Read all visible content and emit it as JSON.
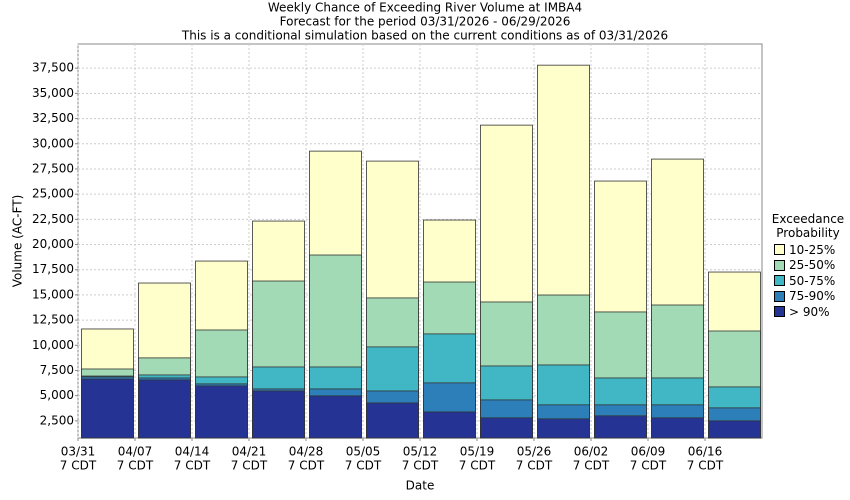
{
  "chart_data": {
    "type": "bar",
    "title": "Weekly Chance of Exceeding River Volume at IMBA4",
    "subtitle": "Forecast for the period 03/31/2026 - 06/29/2026",
    "note": "This is a conditional simulation based on the current conditions as of 03/31/2026",
    "x_label": "Date",
    "y_label": "Volume (AC-FT)",
    "categories": [
      "03/31",
      "04/07",
      "04/14",
      "04/21",
      "04/28",
      "05/05",
      "05/12",
      "05/19",
      "05/26",
      "06/02",
      "06/09",
      "06/16"
    ],
    "category_sublabel": "7 CDT",
    "legend_title": "Exceedance Probability",
    "series": [
      {
        "name": "10-25%",
        "color": "#ffffcc",
        "values": [
          11620,
          16180,
          18360,
          22330,
          29270,
          28280,
          22430,
          31850,
          37800,
          26300,
          28480,
          17270
        ]
      },
      {
        "name": "25-50%",
        "color": "#a1dab4",
        "values": [
          7650,
          8750,
          11520,
          16380,
          18960,
          14700,
          16280,
          14300,
          14990,
          13310,
          14000,
          11420
        ]
      },
      {
        "name": "50-75%",
        "color": "#41b6c4",
        "values": [
          6950,
          7060,
          6860,
          7850,
          7850,
          9840,
          11130,
          7950,
          8050,
          6760,
          6760,
          5870
        ]
      },
      {
        "name": "75-90%",
        "color": "#2c7fb8",
        "values": [
          6860,
          6760,
          6170,
          5670,
          5670,
          5470,
          6270,
          4580,
          4090,
          4090,
          4090,
          3790
        ]
      },
      {
        "name": "> 90%",
        "color": "#253494",
        "values": [
          6650,
          6560,
          5970,
          5470,
          4980,
          4280,
          3390,
          2800,
          2700,
          3000,
          2800,
          2500
        ]
      }
    ],
    "ylim": [
      800,
      39900
    ],
    "yticks": [
      {
        "value": 2500,
        "label": "2,500"
      },
      {
        "value": 5000,
        "label": "5,000"
      },
      {
        "value": 7500,
        "label": "7,500"
      },
      {
        "value": 10000,
        "label": "10,000"
      },
      {
        "value": 12500,
        "label": "12,500"
      },
      {
        "value": 15000,
        "label": "15,000"
      },
      {
        "value": 17500,
        "label": "17,500"
      },
      {
        "value": 20000,
        "label": "20,000"
      },
      {
        "value": 22500,
        "label": "22,500"
      },
      {
        "value": 25000,
        "label": "25,000"
      },
      {
        "value": 27500,
        "label": "27,500"
      },
      {
        "value": 30000,
        "label": "30,000"
      },
      {
        "value": 32500,
        "label": "32,500"
      },
      {
        "value": 35000,
        "label": "35,000"
      },
      {
        "value": 37500,
        "label": "37,500"
      }
    ],
    "grid": true
  }
}
